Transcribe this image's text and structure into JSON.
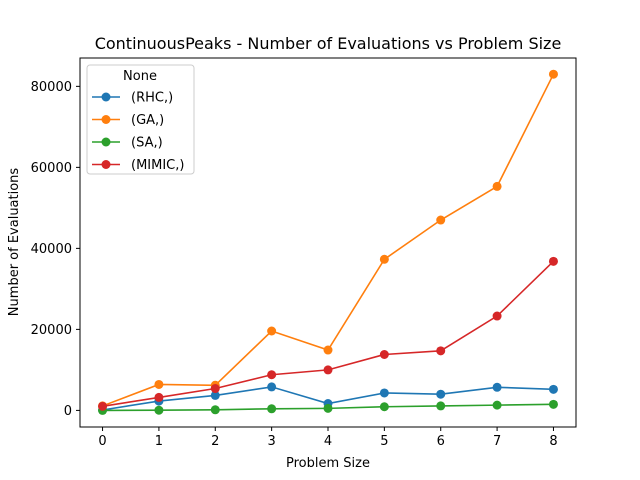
{
  "chart_data": {
    "type": "line",
    "title": "ContinuousPeaks - Number of Evaluations vs Problem Size",
    "xlabel": "Problem Size",
    "ylabel": "Number of Evaluations",
    "x": [
      0,
      1,
      2,
      3,
      4,
      5,
      6,
      7,
      8
    ],
    "xlim": [
      -0.4,
      8.4
    ],
    "ylim": [
      -4100,
      87000
    ],
    "xticks": [
      0,
      1,
      2,
      3,
      4,
      5,
      6,
      7,
      8
    ],
    "yticks": [
      0,
      20000,
      40000,
      60000,
      80000
    ],
    "grid": false,
    "legend": {
      "title": "None",
      "placement": "top-left"
    },
    "series": [
      {
        "name": "(RHC,)",
        "color": "#1f77b4",
        "values": [
          100,
          2300,
          3700,
          5800,
          1700,
          4300,
          4000,
          5700,
          5200
        ]
      },
      {
        "name": "(GA,)",
        "color": "#ff7f0e",
        "values": [
          1100,
          6400,
          6200,
          19600,
          14900,
          37300,
          47000,
          55300,
          83000
        ]
      },
      {
        "name": "(SA,)",
        "color": "#2ca02c",
        "values": [
          0,
          50,
          150,
          400,
          500,
          900,
          1100,
          1300,
          1500
        ]
      },
      {
        "name": "(MIMIC,)",
        "color": "#d62728",
        "values": [
          1000,
          3200,
          5400,
          8800,
          10000,
          13800,
          14700,
          23300,
          36800
        ]
      }
    ]
  }
}
